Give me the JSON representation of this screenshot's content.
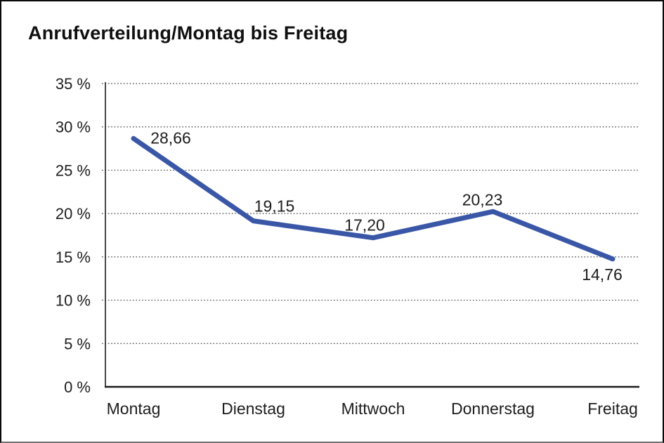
{
  "window": {
    "background": "#ffffff",
    "border_color": "#0a0a0a"
  },
  "chart_data": {
    "type": "line",
    "title": "Anrufverteilung/Montag bis Freitag",
    "categories": [
      "Montag",
      "Dienstag",
      "Mittwoch",
      "Donnerstag",
      "Freitag"
    ],
    "series": [
      {
        "name": "Anrufverteilung",
        "values": [
          28.66,
          19.15,
          17.2,
          20.23,
          14.76
        ],
        "value_labels": [
          "28,66",
          "19,15",
          "17,20",
          "20,23",
          "14,76"
        ]
      }
    ],
    "xlabel": "",
    "ylabel": "",
    "ylim": [
      0,
      35
    ],
    "y_tick_step": 5,
    "y_ticks": [
      {
        "value": 0,
        "label": "0 %"
      },
      {
        "value": 5,
        "label": "5 %"
      },
      {
        "value": 10,
        "label": "10 %"
      },
      {
        "value": 15,
        "label": "15 %"
      },
      {
        "value": 20,
        "label": "20 %"
      },
      {
        "value": 25,
        "label": "25 %"
      },
      {
        "value": 30,
        "label": "30 %"
      },
      {
        "value": 35,
        "label": "35 %"
      }
    ],
    "grid": "horizontal-dotted",
    "legend": "none",
    "colors": {
      "line": "#3A57A7",
      "axis": "#1a1a1a",
      "gridline": "#3f3f3f",
      "text": "#1d1d1d"
    }
  }
}
